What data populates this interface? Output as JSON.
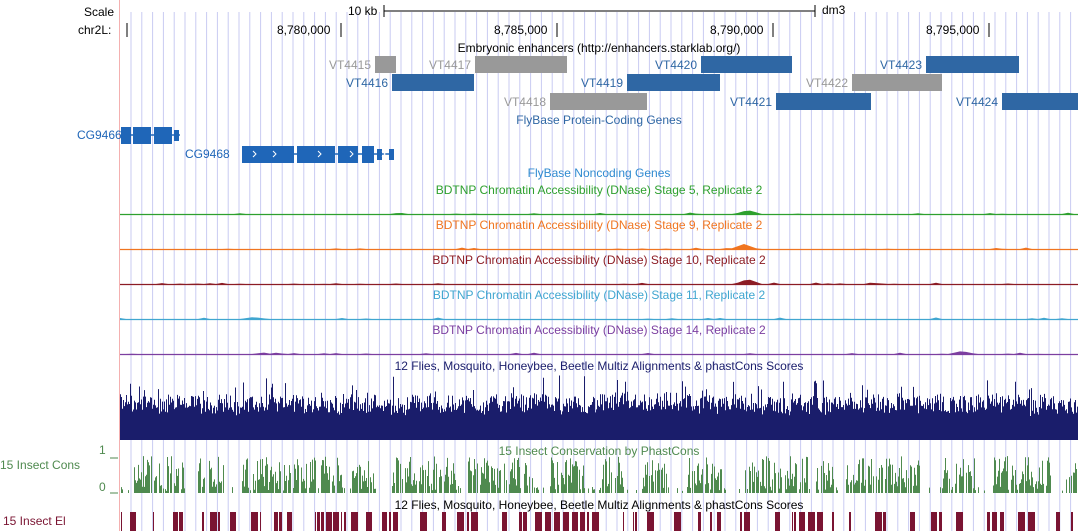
{
  "header": {
    "scale_label": "Scale",
    "chrom_label": "chr2L:",
    "scale_bar_text": "10 kb",
    "assembly": "dm3",
    "positions": [
      "8,780,000",
      "8,785,000",
      "8,790,000",
      "8,795,000"
    ]
  },
  "tracks": {
    "enhancers": {
      "title": "Embryonic enhancers (http://enhancers.starklab.org/)",
      "features": [
        {
          "name": "VT4415",
          "color": "#999999"
        },
        {
          "name": "VT4416",
          "color": "#2f67a4"
        },
        {
          "name": "VT4417",
          "color": "#999999"
        },
        {
          "name": "VT4418",
          "color": "#999999"
        },
        {
          "name": "VT4419",
          "color": "#2f67a4"
        },
        {
          "name": "VT4420",
          "color": "#2f67a4"
        },
        {
          "name": "VT4421",
          "color": "#2f67a4"
        },
        {
          "name": "VT4422",
          "color": "#999999"
        },
        {
          "name": "VT4423",
          "color": "#2f67a4"
        },
        {
          "name": "VT4424",
          "color": "#2f67a4"
        }
      ]
    },
    "protein_genes": {
      "title": "FlyBase Protein-Coding Genes",
      "genes": [
        {
          "name": "CG9466"
        },
        {
          "name": "CG9468"
        }
      ]
    },
    "noncoding": {
      "title": "FlyBase Noncoding Genes"
    },
    "dnase": [
      {
        "title": "BDTNP Chromatin Accessibility (DNase) Stage 5, Replicate 2",
        "color": "#2ea02e"
      },
      {
        "title": "BDTNP Chromatin Accessibility (DNase) Stage 9, Replicate 2",
        "color": "#f07520"
      },
      {
        "title": "BDTNP Chromatin Accessibility (DNase) Stage 10, Replicate 2",
        "color": "#8c1c24"
      },
      {
        "title": "BDTNP Chromatin Accessibility (DNase) Stage 11, Replicate 2",
        "color": "#40a6d0"
      },
      {
        "title": "BDTNP Chromatin Accessibility (DNase) Stage 14, Replicate 2",
        "color": "#7c3fa0"
      }
    ],
    "multiz": {
      "title": "12 Flies, Mosquito, Honeybee, Beetle Multiz Alignments & phastCons Scores",
      "color": "#1a1d6b"
    },
    "phastcons": {
      "title": "15 Insect Conservation by PhastCons",
      "side_label": "15 Insect Cons",
      "axis_max": "1",
      "axis_min": "0",
      "color": "#4f8a4f"
    },
    "elements": {
      "title": "12 Flies, Mosquito, Honeybee, Beetle Multiz Alignments & phastCons Scores",
      "side_label": "15 Insect El",
      "color": "#7a1432"
    }
  }
}
